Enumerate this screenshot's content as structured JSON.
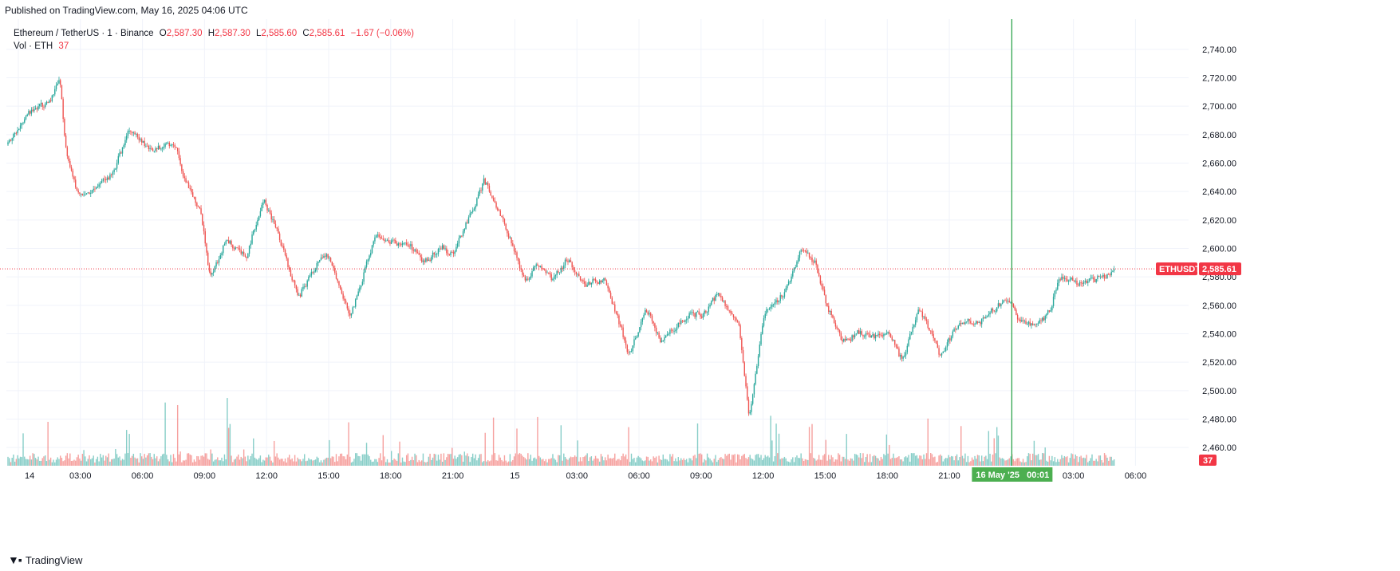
{
  "header": {
    "published": "Published on TradingView.com, May 16, 2025 04:06 UTC"
  },
  "legend": {
    "symbol": "Ethereum / TetherUS · 1 · Binance",
    "o_label": "O",
    "o_value": "2,587.30",
    "h_label": "H",
    "h_value": "2,587.30",
    "l_label": "L",
    "l_value": "2,585.60",
    "c_label": "C",
    "c_value": "2,585.61",
    "change": "−1.67 (−0.06%)",
    "vol_label": "Vol · ETH",
    "vol_value": "37"
  },
  "footer": {
    "brand": "TradingView"
  },
  "colors": {
    "up": "#26a69a",
    "down": "#ef5350",
    "grid": "#f0f3fa",
    "price_line": "#f23645",
    "crosshair": "#1e9e3f",
    "axis_text": "#131722"
  },
  "chart_data": {
    "type": "candlestick",
    "symbol_tag": "ETHUSDT",
    "last_price": "2,585.61",
    "volume_tag": "37",
    "crosshair_label": "16 May '25   00:01",
    "ylim": [
      2450,
      2750
    ],
    "y_ticks": [
      "2,740.00",
      "2,720.00",
      "2,700.00",
      "2,680.00",
      "2,660.00",
      "2,640.00",
      "2,620.00",
      "2,600.00",
      "2,580.00",
      "2,560.00",
      "2,540.00",
      "2,520.00",
      "2,500.00",
      "2,480.00",
      "2,460.00"
    ],
    "y_tick_values": [
      2740,
      2720,
      2700,
      2680,
      2660,
      2640,
      2620,
      2600,
      2580,
      2560,
      2540,
      2520,
      2500,
      2480,
      2460
    ],
    "x_ticks": [
      "14",
      "03:00",
      "06:00",
      "09:00",
      "12:00",
      "15:00",
      "18:00",
      "21:00",
      "15",
      "03:00",
      "06:00",
      "09:00",
      "12:00",
      "15:00",
      "18:00",
      "21:00",
      "03:00",
      "06:00"
    ],
    "x_tick_hours": [
      0,
      3,
      6,
      9,
      12,
      15,
      18,
      21,
      24,
      27,
      30,
      33,
      36,
      39,
      42,
      45,
      51,
      54
    ],
    "x_range_hours": [
      -0.5,
      55.5
    ],
    "crosshair_hour": 48.02,
    "price_path_hours": [
      -0.5,
      0.5,
      1.5,
      2.0,
      2.2,
      2.8,
      3.5,
      4.5,
      5.3,
      6.5,
      7.5,
      8.0,
      8.8,
      9.2,
      10.0,
      11.0,
      11.8,
      12.5,
      13.5,
      14.4,
      15.0,
      16.0,
      16.8,
      17.3,
      17.8,
      18.8,
      19.5,
      20.5,
      21.0,
      22.5,
      23.5,
      24.5,
      25.0,
      25.8,
      26.5,
      27.3,
      28.3,
      29.5,
      30.3,
      31.0,
      31.8,
      32.5,
      33.0,
      33.8,
      34.8,
      35.3,
      36.0,
      37.0,
      37.8,
      38.5,
      39.0,
      39.8,
      40.5,
      41.5,
      42.0,
      42.7,
      43.5,
      44.5,
      45.5,
      46.3,
      47.0,
      47.8,
      48.3,
      49.0,
      49.8,
      50.3,
      51.3,
      52.3,
      53.0
    ],
    "price_path_values": [
      2673,
      2695,
      2705,
      2722,
      2672,
      2640,
      2640,
      2652,
      2682,
      2668,
      2675,
      2650,
      2625,
      2578,
      2605,
      2595,
      2635,
      2610,
      2565,
      2590,
      2595,
      2551,
      2590,
      2610,
      2605,
      2605,
      2590,
      2600,
      2595,
      2648,
      2615,
      2575,
      2590,
      2578,
      2592,
      2575,
      2580,
      2525,
      2560,
      2535,
      2545,
      2555,
      2552,
      2570,
      2545,
      2480,
      2555,
      2568,
      2598,
      2590,
      2560,
      2535,
      2540,
      2538,
      2542,
      2520,
      2560,
      2525,
      2550,
      2548,
      2555,
      2565,
      2550,
      2545,
      2555,
      2580,
      2575,
      2580,
      2586
    ]
  }
}
